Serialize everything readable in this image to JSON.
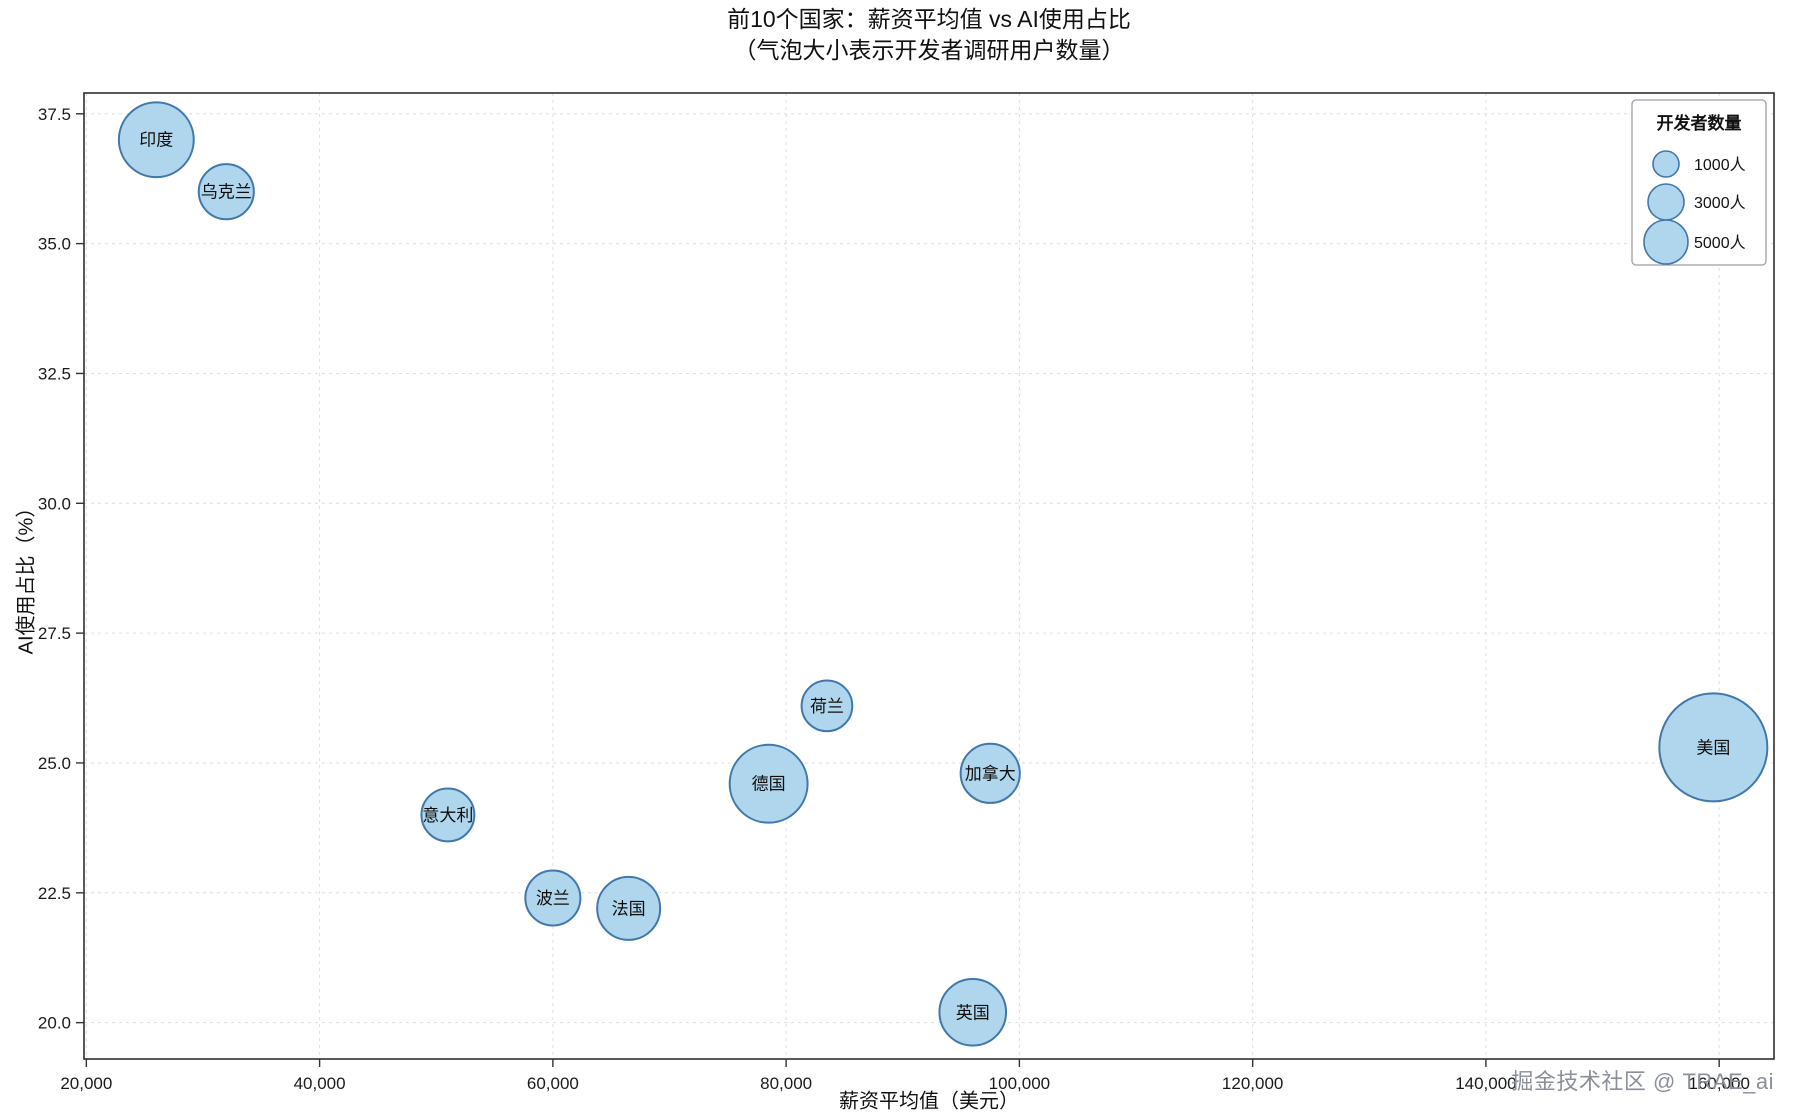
{
  "title": {
    "line1": "前10个国家：薪资平均值 vs AI使用占比",
    "line2": "（气泡大小表示开发者调研用户数量）"
  },
  "watermark": "掘金技术社区 @ TRAE_ai",
  "chart_data": {
    "type": "scatter",
    "subtype": "bubble",
    "title": "前10个国家：薪资平均值 vs AI使用占比（气泡大小表示开发者调研用户数量）",
    "xlabel": "薪资平均值（美元）",
    "ylabel": "AI使用占比（%）",
    "xlim": [
      19800,
      164700
    ],
    "ylim": [
      19.3,
      37.9
    ],
    "grid": true,
    "grid_style": "dashed",
    "legend_position": "upper right",
    "x_tick_values": [
      20000,
      40000,
      60000,
      80000,
      100000,
      120000,
      140000,
      160000
    ],
    "x_ticks": [
      "20,000",
      "40,000",
      "60,000",
      "80,000",
      "100,000",
      "120,000",
      "140,000",
      "160,000"
    ],
    "y_tick_values": [
      20.0,
      22.5,
      25.0,
      27.5,
      30.0,
      32.5,
      35.0,
      37.5
    ],
    "y_ticks": [
      "20.0",
      "22.5",
      "25.0",
      "27.5",
      "30.0",
      "32.5",
      "35.0",
      "37.5"
    ],
    "bubble_fill": "#a9d3ec",
    "bubble_stroke": "#3f78ab",
    "points": [
      {
        "label": "印度",
        "x": 26000,
        "y": 37.0,
        "count": 2400
      },
      {
        "label": "乌克兰",
        "x": 32000,
        "y": 36.0,
        "count": 1300
      },
      {
        "label": "意大利",
        "x": 51000,
        "y": 24.0,
        "count": 1200
      },
      {
        "label": "波兰",
        "x": 60000,
        "y": 22.4,
        "count": 1300
      },
      {
        "label": "法国",
        "x": 66500,
        "y": 22.2,
        "count": 1700
      },
      {
        "label": "德国",
        "x": 78500,
        "y": 24.6,
        "count": 2600
      },
      {
        "label": "荷兰",
        "x": 83500,
        "y": 26.1,
        "count": 1100
      },
      {
        "label": "英国",
        "x": 96000,
        "y": 20.2,
        "count": 1900
      },
      {
        "label": "加拿大",
        "x": 97500,
        "y": 24.8,
        "count": 1500
      },
      {
        "label": "美国",
        "x": 159500,
        "y": 25.3,
        "count": 5000
      }
    ],
    "legend": {
      "title": "开发者数量",
      "items": [
        {
          "label": "1000人",
          "display_r": 13
        },
        {
          "label": "3000人",
          "display_r": 18
        },
        {
          "label": "5000人",
          "display_r": 22
        }
      ]
    }
  }
}
